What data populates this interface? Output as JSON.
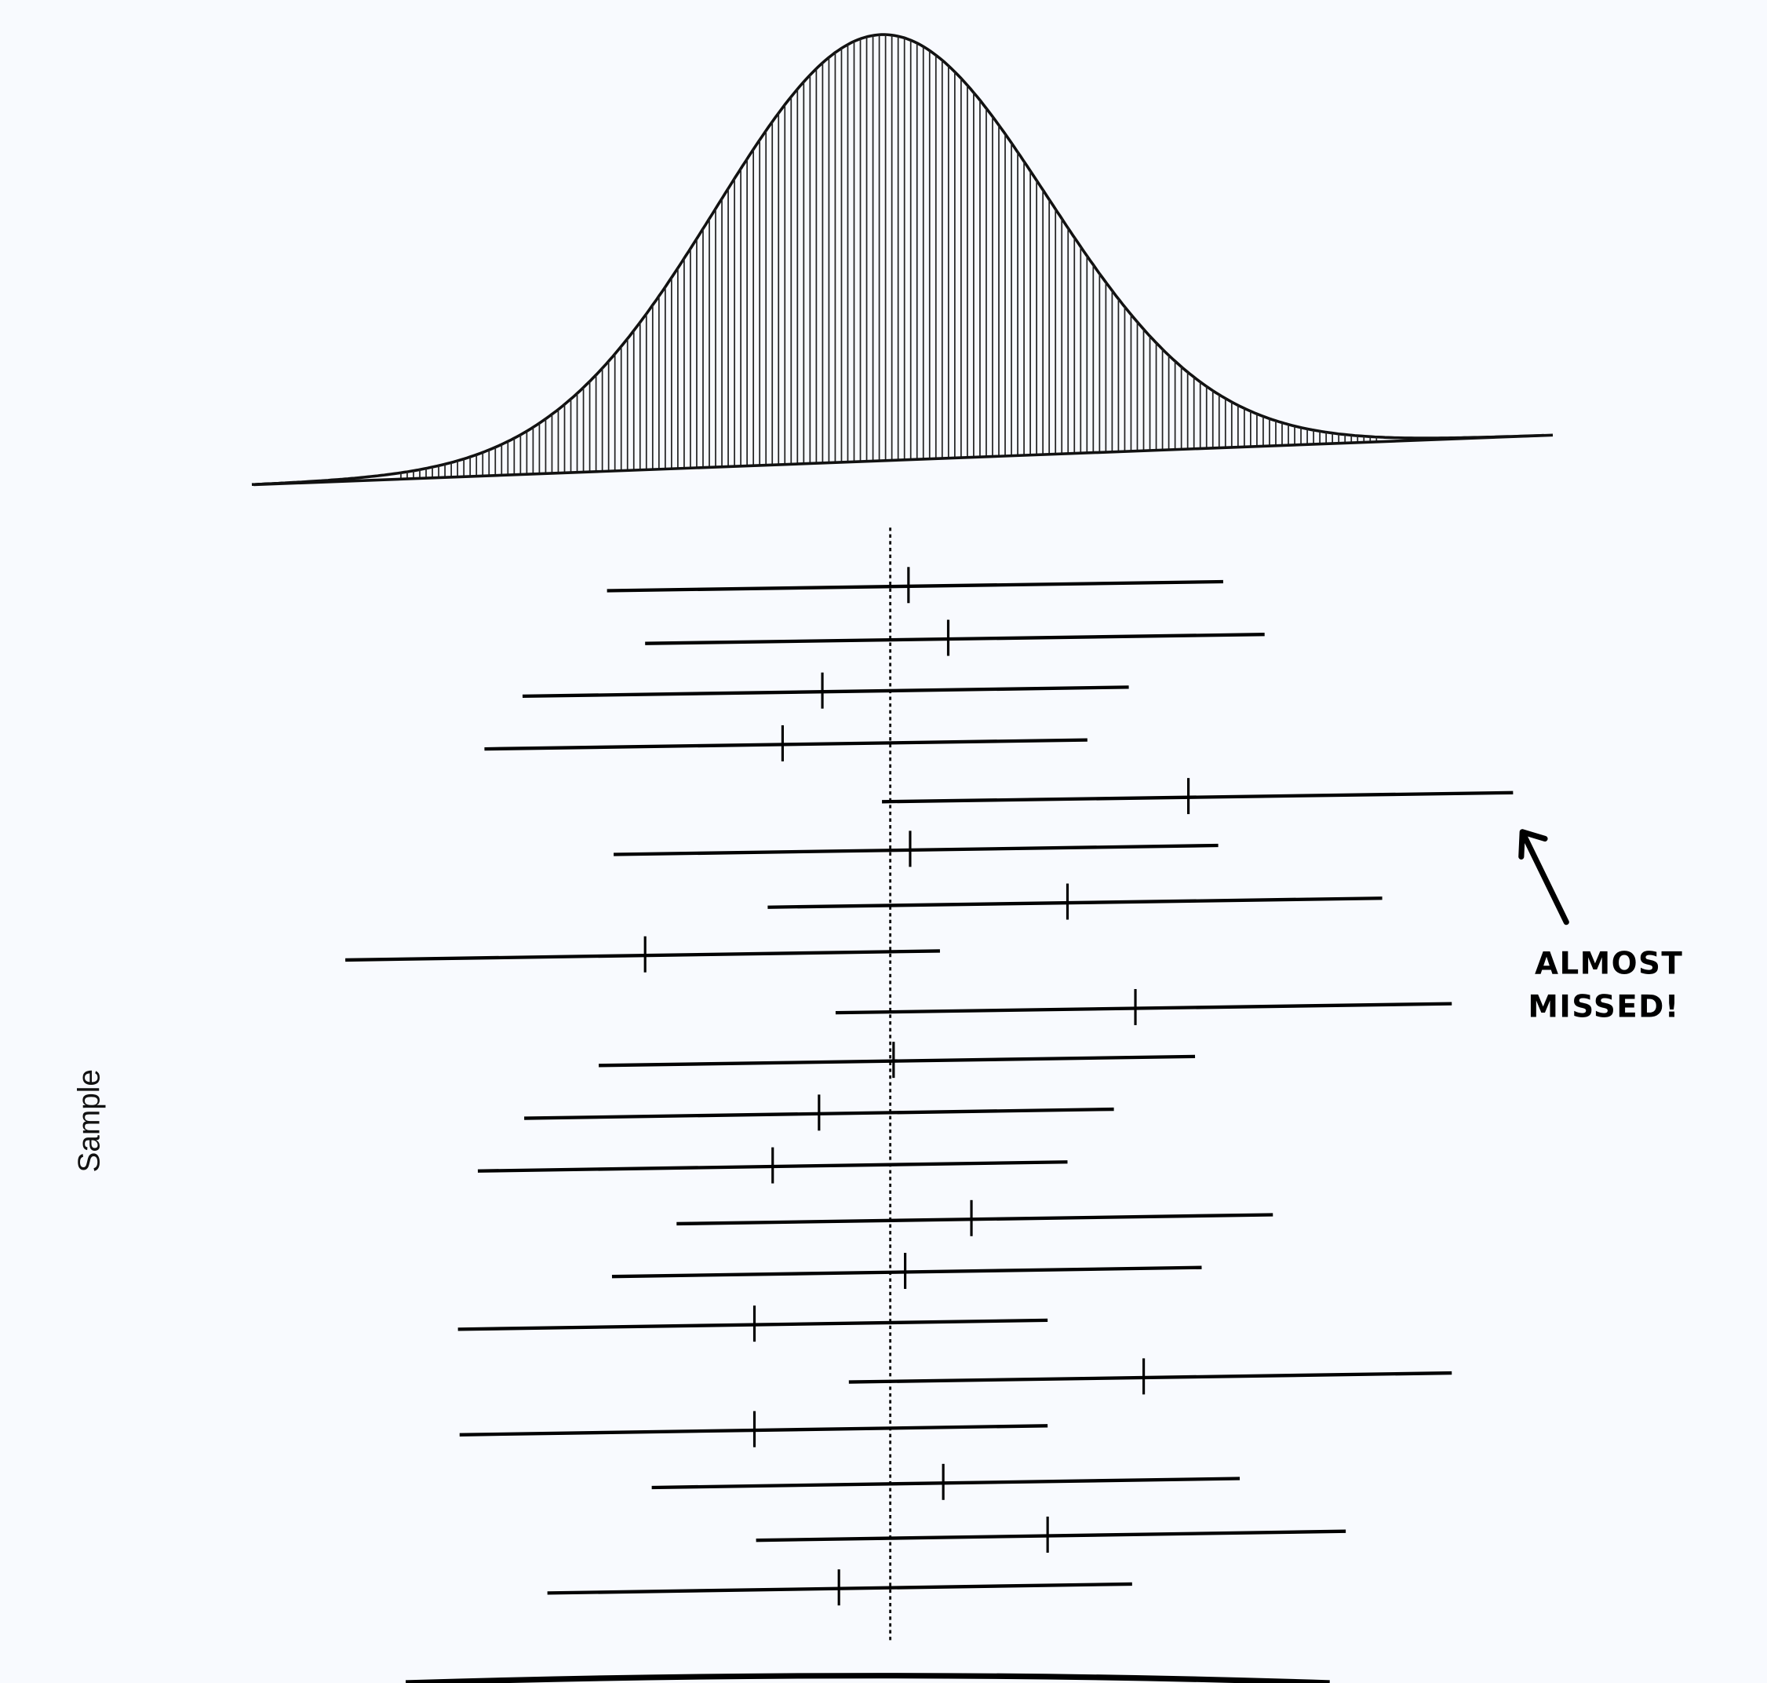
{
  "chart_data": {
    "type": "interval",
    "title": "",
    "ylabel": "Sample",
    "xlabel": "",
    "sampling_distribution": {
      "shape": "normal",
      "mean": 0,
      "sd": 1,
      "fill": "vertical-hatch",
      "xlim": [
        -3.8,
        4.0
      ]
    },
    "true_value_line": {
      "x": 0,
      "style": "dotted"
    },
    "intervals": [
      {
        "lower": -1.71,
        "upper": 2.01,
        "estimate": 0.11
      },
      {
        "lower": -1.48,
        "upper": 2.26,
        "estimate": 0.35
      },
      {
        "lower": -2.22,
        "upper": 1.44,
        "estimate": -0.41
      },
      {
        "lower": -2.45,
        "upper": 1.19,
        "estimate": -0.65
      },
      {
        "lower": -0.05,
        "upper": 3.76,
        "estimate": 1.8
      },
      {
        "lower": -1.67,
        "upper": 1.98,
        "estimate": 0.12
      },
      {
        "lower": -0.74,
        "upper": 2.97,
        "estimate": 1.07
      },
      {
        "lower": -3.29,
        "upper": 0.3,
        "estimate": -1.48
      },
      {
        "lower": -0.33,
        "upper": 3.39,
        "estimate": 1.48
      },
      {
        "lower": -1.76,
        "upper": 1.84,
        "estimate": 0.02
      },
      {
        "lower": -2.21,
        "upper": 1.35,
        "estimate": -0.43
      },
      {
        "lower": -2.49,
        "upper": 1.07,
        "estimate": -0.71
      },
      {
        "lower": -1.29,
        "upper": 2.31,
        "estimate": 0.49
      },
      {
        "lower": -1.68,
        "upper": 1.88,
        "estimate": 0.09
      },
      {
        "lower": -2.61,
        "upper": 0.95,
        "estimate": -0.82
      },
      {
        "lower": -0.25,
        "upper": 3.39,
        "estimate": 1.53
      },
      {
        "lower": -2.6,
        "upper": 0.95,
        "estimate": -0.82
      },
      {
        "lower": -1.44,
        "upper": 2.11,
        "estimate": 0.32
      },
      {
        "lower": -0.81,
        "upper": 2.75,
        "estimate": 0.95
      },
      {
        "lower": -2.07,
        "upper": 1.46,
        "estimate": -0.31
      }
    ],
    "annotation": {
      "line1": "ALMOST",
      "line2": "MISSED!",
      "points_to_interval": 5
    }
  }
}
